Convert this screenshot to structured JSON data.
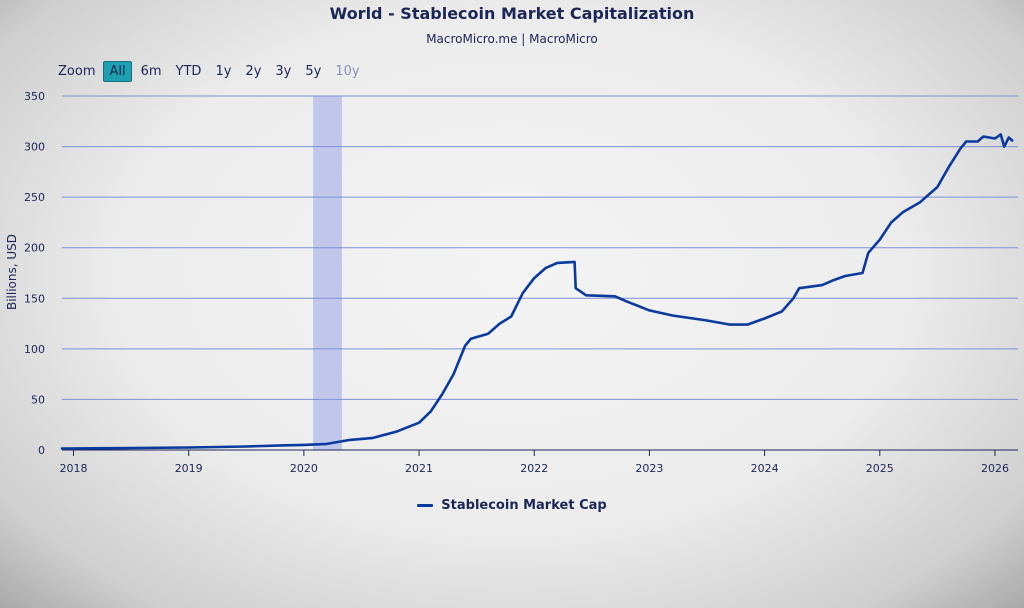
{
  "header": {
    "title": "World - Stablecoin Market Capitalization",
    "source": "MacroMicro.me | MacroMicro"
  },
  "zoom": {
    "label": "Zoom",
    "options": [
      "All",
      "6m",
      "YTD",
      "1y",
      "2y",
      "3y",
      "5y",
      "10y"
    ],
    "selected": "All",
    "disabled": [
      "10y"
    ]
  },
  "colors": {
    "series": "#0b3a9e",
    "grid": "#7f8fd6",
    "axis_text": "#1c2656",
    "recession_band": "#b9c0ea"
  },
  "chart_data": {
    "type": "line",
    "title": "World - Stablecoin Market Capitalization",
    "xlabel": "",
    "ylabel": "Billions, USD",
    "ylim": [
      0,
      350
    ],
    "yticks": [
      0,
      50,
      100,
      150,
      200,
      250,
      300,
      350
    ],
    "xlim": [
      2017.9,
      2026.2
    ],
    "xticks": [
      2018,
      2019,
      2020,
      2021,
      2022,
      2023,
      2024,
      2025,
      2026
    ],
    "shaded_ranges": [
      [
        2020.08,
        2020.33
      ]
    ],
    "legend": "bottom-center",
    "series": [
      {
        "name": "Stablecoin Market Cap",
        "points": [
          [
            2017.9,
            1.5
          ],
          [
            2018.5,
            2
          ],
          [
            2019.0,
            2.5
          ],
          [
            2019.5,
            3.5
          ],
          [
            2019.8,
            4.5
          ],
          [
            2020.0,
            5
          ],
          [
            2020.2,
            6
          ],
          [
            2020.4,
            10
          ],
          [
            2020.6,
            12
          ],
          [
            2020.8,
            18
          ],
          [
            2021.0,
            27
          ],
          [
            2021.1,
            38
          ],
          [
            2021.2,
            55
          ],
          [
            2021.3,
            75
          ],
          [
            2021.4,
            103
          ],
          [
            2021.45,
            110
          ],
          [
            2021.6,
            115
          ],
          [
            2021.7,
            125
          ],
          [
            2021.8,
            132
          ],
          [
            2021.9,
            155
          ],
          [
            2022.0,
            170
          ],
          [
            2022.1,
            180
          ],
          [
            2022.2,
            185
          ],
          [
            2022.35,
            186
          ],
          [
            2022.36,
            160
          ],
          [
            2022.45,
            153
          ],
          [
            2022.7,
            152
          ],
          [
            2022.8,
            147
          ],
          [
            2023.0,
            138
          ],
          [
            2023.2,
            133
          ],
          [
            2023.5,
            128
          ],
          [
            2023.7,
            124
          ],
          [
            2023.85,
            124
          ],
          [
            2024.0,
            130
          ],
          [
            2024.15,
            137
          ],
          [
            2024.25,
            150
          ],
          [
            2024.3,
            160
          ],
          [
            2024.5,
            163
          ],
          [
            2024.6,
            168
          ],
          [
            2024.7,
            172
          ],
          [
            2024.85,
            175
          ],
          [
            2024.9,
            195
          ],
          [
            2025.0,
            208
          ],
          [
            2025.1,
            225
          ],
          [
            2025.2,
            235
          ],
          [
            2025.35,
            245
          ],
          [
            2025.5,
            260
          ],
          [
            2025.6,
            280
          ],
          [
            2025.7,
            298
          ],
          [
            2025.75,
            305
          ],
          [
            2025.85,
            305
          ],
          [
            2025.9,
            310
          ],
          [
            2026.0,
            308
          ],
          [
            2026.05,
            312
          ],
          [
            2026.08,
            300
          ],
          [
            2026.12,
            309
          ],
          [
            2026.15,
            306
          ]
        ]
      }
    ]
  }
}
